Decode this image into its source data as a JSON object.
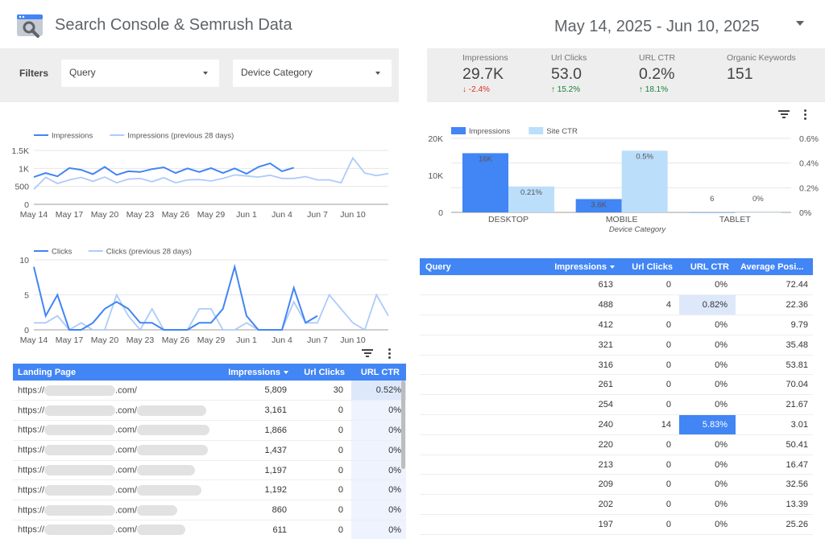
{
  "header": {
    "title": "Search Console & Semrush Data",
    "date_range": "May 14, 2025 - Jun 10, 2025"
  },
  "filters": {
    "label": "Filters",
    "query": "Query",
    "device": "Device Category"
  },
  "kpis": [
    {
      "label": "Impressions",
      "value": "29.7K",
      "change": "-2.4%",
      "direction": "down"
    },
    {
      "label": "Url Clicks",
      "value": "53.0",
      "change": "15.2%",
      "direction": "up"
    },
    {
      "label": "URL CTR",
      "value": "0.2%",
      "change": "18.1%",
      "direction": "up"
    },
    {
      "label": "Organic Keywords",
      "value": "151",
      "change": "",
      "direction": ""
    }
  ],
  "colors": {
    "primary": "#4285f4",
    "secondary": "#aecbfa",
    "bar_secondary": "#bbdefb",
    "down": "#d93025",
    "up": "#188038"
  },
  "chart_data": [
    {
      "type": "line",
      "series": [
        {
          "name": "Impressions",
          "values": [
            760,
            870,
            780,
            1010,
            960,
            840,
            1040,
            820,
            920,
            900,
            980,
            1030,
            870,
            1000,
            900,
            1010,
            870,
            1000,
            850,
            1040,
            1140,
            920,
            1020
          ]
        },
        {
          "name": "Impressions (previous 28 days)",
          "values": [
            420,
            750,
            580,
            680,
            750,
            640,
            760,
            600,
            700,
            720,
            630,
            740,
            600,
            680,
            690,
            650,
            720,
            820,
            790,
            760,
            810,
            720,
            720,
            770,
            680,
            680,
            600,
            1290,
            870,
            800,
            860
          ]
        }
      ],
      "x_ticks": [
        "May 14",
        "May 17",
        "May 20",
        "May 23",
        "May 26",
        "May 29",
        "Jun 1",
        "Jun 4",
        "Jun 7",
        "Jun 10"
      ],
      "y_ticks": [
        "1.5K",
        "1K",
        "500",
        "0"
      ],
      "ylim": [
        0,
        1500
      ]
    },
    {
      "type": "line",
      "series": [
        {
          "name": "Clicks",
          "values": [
            9,
            2,
            5,
            0,
            0,
            1,
            3,
            4,
            3,
            1,
            1,
            0,
            0,
            0,
            1,
            1,
            3,
            9,
            2,
            0,
            0,
            0,
            6,
            1,
            2
          ]
        },
        {
          "name": "Clicks (previous 28 days)",
          "values": [
            1,
            1,
            2,
            0,
            1,
            0,
            0,
            5,
            2,
            0,
            3,
            0,
            0,
            0,
            3,
            3,
            0,
            0,
            1,
            0,
            0,
            0,
            4,
            1,
            1,
            5,
            3,
            1,
            0,
            5,
            2
          ]
        }
      ],
      "x_ticks": [
        "May 14",
        "May 17",
        "May 20",
        "May 23",
        "May 26",
        "May 29",
        "Jun 1",
        "Jun 4",
        "Jun 7",
        "Jun 10"
      ],
      "y_ticks": [
        "10",
        "5",
        "0"
      ],
      "ylim": [
        0,
        10
      ]
    },
    {
      "type": "bar",
      "categories": [
        "DESKTOP",
        "MOBILE",
        "TABLET"
      ],
      "series": [
        {
          "name": "Impressions",
          "values": [
            16000,
            3600,
            6
          ],
          "labels": [
            "16K",
            "3.6K",
            "6"
          ]
        },
        {
          "name": "Site CTR",
          "values": [
            0.21,
            0.5,
            0
          ],
          "labels": [
            "0.21%",
            "0.5%",
            "0%"
          ]
        }
      ],
      "xlabel": "Device Category",
      "y_left_ticks": [
        "20K",
        "10K",
        "0"
      ],
      "y_right_ticks": [
        "0.6%",
        "0.4%",
        "0.2%",
        "0%"
      ],
      "ylim_left": [
        0,
        20000
      ],
      "ylim_right": [
        0,
        0.6
      ]
    }
  ],
  "landing_table": {
    "headers": [
      "Landing Page",
      "Impressions",
      "Url Clicks",
      "URL CTR"
    ],
    "rows": [
      {
        "url": "https://",
        "suffix": ".com/",
        "impressions": "5,809",
        "clicks": "30",
        "ctr": "0.52%"
      },
      {
        "url": "https://",
        "suffix": ".com/",
        "impressions": "3,161",
        "clicks": "0",
        "ctr": "0%"
      },
      {
        "url": "https://",
        "suffix": ".com/",
        "impressions": "1,866",
        "clicks": "0",
        "ctr": "0%"
      },
      {
        "url": "https://",
        "suffix": ".com/",
        "impressions": "1,437",
        "clicks": "0",
        "ctr": "0%"
      },
      {
        "url": "https://",
        "suffix": ".com/",
        "impressions": "1,197",
        "clicks": "0",
        "ctr": "0%"
      },
      {
        "url": "https://",
        "suffix": ".com/",
        "impressions": "1,192",
        "clicks": "0",
        "ctr": "0%"
      },
      {
        "url": "https://",
        "suffix": ".com/",
        "impressions": "860",
        "clicks": "0",
        "ctr": "0%"
      },
      {
        "url": "https://",
        "suffix": ".com/",
        "impressions": "611",
        "clicks": "0",
        "ctr": "0%"
      }
    ]
  },
  "query_table": {
    "headers": [
      "Query",
      "Impressions",
      "Url Clicks",
      "URL CTR",
      "Average Posi..."
    ],
    "rows": [
      {
        "query": "",
        "impressions": "613",
        "clicks": "0",
        "ctr": "0%",
        "position": "72.44"
      },
      {
        "query": "",
        "impressions": "488",
        "clicks": "4",
        "ctr": "0.82%",
        "position": "22.36"
      },
      {
        "query": "",
        "impressions": "412",
        "clicks": "0",
        "ctr": "0%",
        "position": "9.79"
      },
      {
        "query": "",
        "impressions": "321",
        "clicks": "0",
        "ctr": "0%",
        "position": "35.48"
      },
      {
        "query": "",
        "impressions": "316",
        "clicks": "0",
        "ctr": "0%",
        "position": "53.81"
      },
      {
        "query": "",
        "impressions": "261",
        "clicks": "0",
        "ctr": "0%",
        "position": "70.04"
      },
      {
        "query": "",
        "impressions": "254",
        "clicks": "0",
        "ctr": "0%",
        "position": "21.67"
      },
      {
        "query": "",
        "impressions": "240",
        "clicks": "14",
        "ctr": "5.83%",
        "position": "3.01"
      },
      {
        "query": "",
        "impressions": "220",
        "clicks": "0",
        "ctr": "0%",
        "position": "50.41"
      },
      {
        "query": "",
        "impressions": "213",
        "clicks": "0",
        "ctr": "0%",
        "position": "16.47"
      },
      {
        "query": "",
        "impressions": "209",
        "clicks": "0",
        "ctr": "0%",
        "position": "32.56"
      },
      {
        "query": "",
        "impressions": "202",
        "clicks": "0",
        "ctr": "0%",
        "position": "13.39"
      },
      {
        "query": "",
        "impressions": "197",
        "clicks": "0",
        "ctr": "0%",
        "position": "25.26"
      }
    ]
  }
}
